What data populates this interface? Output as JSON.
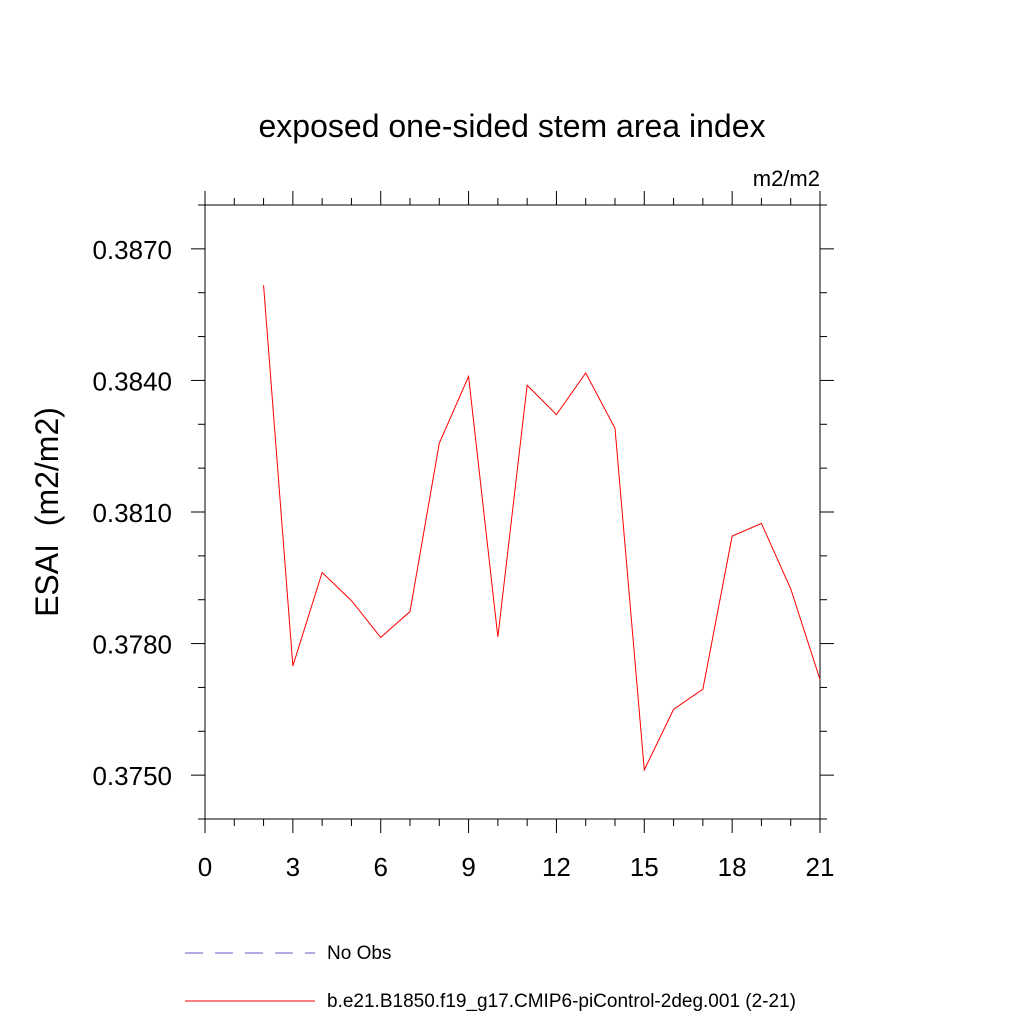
{
  "chart_data": {
    "type": "line",
    "title": "exposed one-sided stem area index",
    "units": "m2/m2",
    "ylabel": "ESAI  (m2/m2)",
    "xlabel": "",
    "xlim": [
      0,
      21
    ],
    "ylim": [
      0.374,
      0.388
    ],
    "xticks": [
      0,
      3,
      6,
      9,
      12,
      15,
      18,
      21
    ],
    "xtick_labels": [
      "0",
      "3",
      "6",
      "9",
      "12",
      "15",
      "18",
      "21"
    ],
    "yticks": [
      0.375,
      0.378,
      0.381,
      0.384,
      0.387
    ],
    "ytick_labels": [
      "0.3750",
      "0.3780",
      "0.3810",
      "0.3840",
      "0.3870"
    ],
    "grid": false,
    "legend_position": "bottom",
    "series": [
      {
        "name": "No Obs",
        "color": "#6a5acd",
        "style": "dashed",
        "x": [],
        "y": []
      },
      {
        "name": "b.e21.B1850.f19_g17.CMIP6-piControl-2deg.001 (2-21)",
        "color": "#ff0000",
        "style": "solid",
        "x": [
          2,
          3,
          4,
          5,
          6,
          7,
          8,
          9,
          10,
          11,
          12,
          13,
          14,
          15,
          16,
          17,
          18,
          19,
          20,
          21
        ],
        "y": [
          0.38617,
          0.37749,
          0.37962,
          0.37898,
          0.37814,
          0.37873,
          0.38257,
          0.38409,
          0.37815,
          0.38389,
          0.38322,
          0.38417,
          0.38291,
          0.37512,
          0.3765,
          0.37696,
          0.38045,
          0.38074,
          0.37925,
          0.37718
        ]
      }
    ]
  }
}
